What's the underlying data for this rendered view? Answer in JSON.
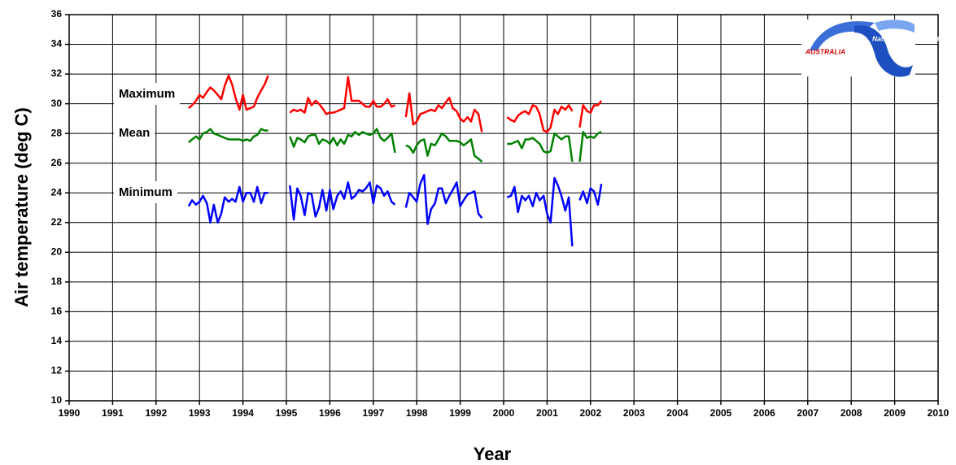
{
  "chart_data": {
    "type": "line",
    "y_label": "Air temperature (deg C)",
    "x_label": "Year",
    "logo_text": [
      "National Tidal Facility",
      "AUSTRALIA"
    ],
    "annotations": [
      "Maximum",
      "Mean",
      "Minimum"
    ],
    "xlim": [
      1990,
      2010
    ],
    "ylim": [
      10,
      36
    ],
    "xticks": [
      1990,
      1991,
      1992,
      1993,
      1994,
      1995,
      1996,
      1997,
      1998,
      1999,
      2000,
      2001,
      2002,
      2003,
      2004,
      2005,
      2006,
      2007,
      2008,
      2009,
      2010
    ],
    "yticks": [
      10,
      12,
      14,
      16,
      18,
      20,
      22,
      24,
      26,
      28,
      30,
      32,
      34,
      36
    ],
    "grid": true,
    "x": [
      1992.75,
      1992.83,
      1992.92,
      1993,
      1993.08,
      1993.17,
      1993.25,
      1993.33,
      1993.42,
      1993.5,
      1993.58,
      1993.67,
      1993.75,
      1993.83,
      1993.92,
      1994,
      1994.08,
      1994.17,
      1994.25,
      1994.33,
      1994.42,
      1994.5,
      1994.58,
      1994.67,
      1994.75,
      1994.83,
      1994.92,
      1995,
      1995.08,
      1995.17,
      1995.25,
      1995.33,
      1995.42,
      1995.5,
      1995.58,
      1995.67,
      1995.75,
      1995.83,
      1995.92,
      1996,
      1996.08,
      1996.17,
      1996.25,
      1996.33,
      1996.42,
      1996.5,
      1996.58,
      1996.67,
      1996.75,
      1996.83,
      1996.92,
      1997,
      1997.08,
      1997.17,
      1997.25,
      1997.33,
      1997.42,
      1997.5,
      1997.58,
      1997.67,
      1997.75,
      1997.83,
      1997.92,
      1998,
      1998.08,
      1998.17,
      1998.25,
      1998.33,
      1998.42,
      1998.5,
      1998.58,
      1998.67,
      1998.75,
      1998.83,
      1998.92,
      1999,
      1999.08,
      1999.17,
      1999.25,
      1999.33,
      1999.42,
      1999.5,
      1999.58,
      1999.67,
      1999.75,
      1999.83,
      1999.92,
      2000,
      2000.08,
      2000.17,
      2000.25,
      2000.33,
      2000.42,
      2000.5,
      2000.58,
      2000.67,
      2000.75,
      2000.83,
      2000.92,
      2001,
      2001.08,
      2001.17,
      2001.25,
      2001.33,
      2001.42,
      2001.5,
      2001.58,
      2001.67,
      2001.75,
      2001.83,
      2001.92,
      2002,
      2002.08,
      2002.17,
      2002.25
    ],
    "series": [
      {
        "name": "Maximum",
        "color": "#ff0000",
        "values": [
          29.7,
          29.9,
          30.2,
          30.6,
          30.4,
          30.8,
          31.1,
          30.9,
          30.6,
          30.3,
          31.2,
          31.9,
          31.3,
          30.4,
          29.6,
          30.6,
          29.6,
          29.7,
          29.8,
          30.4,
          30.9,
          31.3,
          31.9,
          null,
          null,
          null,
          null,
          null,
          29.4,
          29.6,
          29.5,
          29.6,
          29.4,
          30.4,
          29.9,
          30.2,
          30.0,
          29.7,
          29.3,
          29.4,
          29.4,
          29.5,
          29.6,
          29.7,
          31.8,
          30.2,
          30.2,
          30.2,
          30.0,
          29.8,
          29.8,
          30.2,
          29.8,
          29.8,
          30.0,
          30.3,
          29.8,
          29.9,
          null,
          null,
          29.1,
          30.7,
          28.6,
          28.8,
          29.3,
          29.4,
          29.5,
          29.6,
          29.5,
          29.9,
          29.7,
          30.1,
          30.4,
          29.7,
          29.5,
          29.0,
          28.8,
          29.1,
          28.8,
          29.6,
          29.3,
          28.1,
          null,
          null,
          null,
          null,
          null,
          null,
          29.1,
          28.9,
          28.8,
          29.2,
          29.4,
          29.5,
          29.3,
          29.9,
          29.8,
          29.3,
          28.2,
          28.1,
          28.4,
          29.6,
          29.3,
          29.8,
          29.6,
          29.9,
          29.5,
          null,
          28.4,
          29.9,
          29.5,
          29.4,
          29.9,
          29.9,
          30.2
        ]
      },
      {
        "name": "Mean",
        "color": "#008000",
        "values": [
          27.4,
          27.6,
          27.8,
          27.6,
          28.0,
          28.1,
          28.3,
          28.0,
          27.9,
          27.8,
          27.7,
          27.6,
          27.6,
          27.6,
          27.6,
          27.5,
          27.6,
          27.5,
          27.8,
          27.9,
          28.3,
          28.2,
          28.2,
          null,
          null,
          null,
          null,
          null,
          27.8,
          27.1,
          27.7,
          27.6,
          27.4,
          27.8,
          27.9,
          27.9,
          27.3,
          27.6,
          27.5,
          27.3,
          27.7,
          27.2,
          27.6,
          27.3,
          27.9,
          27.8,
          28.1,
          27.9,
          28.1,
          28.0,
          27.9,
          28.0,
          28.3,
          27.7,
          27.5,
          27.7,
          28.0,
          26.7,
          null,
          null,
          27.2,
          27.1,
          26.7,
          27.2,
          27.5,
          27.6,
          26.5,
          27.3,
          27.2,
          27.6,
          28.0,
          27.8,
          27.5,
          27.5,
          27.5,
          27.4,
          27.2,
          27.4,
          27.6,
          26.5,
          26.3,
          26.1,
          null,
          null,
          null,
          null,
          null,
          null,
          27.3,
          27.3,
          27.4,
          27.5,
          27.0,
          27.6,
          27.6,
          27.7,
          27.5,
          27.3,
          26.8,
          26.7,
          26.8,
          28.0,
          27.8,
          27.6,
          27.8,
          27.8,
          26.1,
          null,
          26.1,
          28.1,
          27.7,
          27.8,
          27.7,
          28.0,
          28.1
        ]
      },
      {
        "name": "Minimum",
        "color": "#0000ff",
        "values": [
          23.1,
          23.5,
          23.2,
          23.4,
          23.8,
          23.3,
          22.0,
          23.2,
          22.0,
          22.6,
          23.7,
          23.4,
          23.6,
          23.4,
          24.4,
          23.4,
          24.0,
          24.0,
          23.4,
          24.4,
          23.3,
          24.0,
          24.0,
          null,
          null,
          null,
          null,
          null,
          24.5,
          22.2,
          24.3,
          23.8,
          22.5,
          24.0,
          23.9,
          22.4,
          23.0,
          24.2,
          22.8,
          24.2,
          22.9,
          23.8,
          24.1,
          23.6,
          24.7,
          23.6,
          23.8,
          24.2,
          24.1,
          24.3,
          24.7,
          23.3,
          24.5,
          24.3,
          23.8,
          24.1,
          23.4,
          23.2,
          null,
          null,
          23.0,
          24.0,
          23.7,
          23.4,
          24.6,
          25.2,
          21.9,
          22.9,
          23.3,
          24.3,
          24.3,
          23.3,
          23.8,
          24.2,
          24.7,
          23.1,
          23.5,
          23.9,
          24.0,
          24.1,
          22.6,
          22.3,
          null,
          null,
          null,
          null,
          null,
          null,
          23.7,
          23.8,
          24.4,
          22.7,
          23.8,
          23.5,
          23.8,
          23.1,
          24.0,
          23.5,
          23.8,
          22.6,
          22.0,
          25.0,
          24.5,
          23.8,
          22.8,
          23.7,
          20.4,
          null,
          23.5,
          24.1,
          23.3,
          24.3,
          24.1,
          23.2,
          24.6
        ]
      }
    ]
  }
}
